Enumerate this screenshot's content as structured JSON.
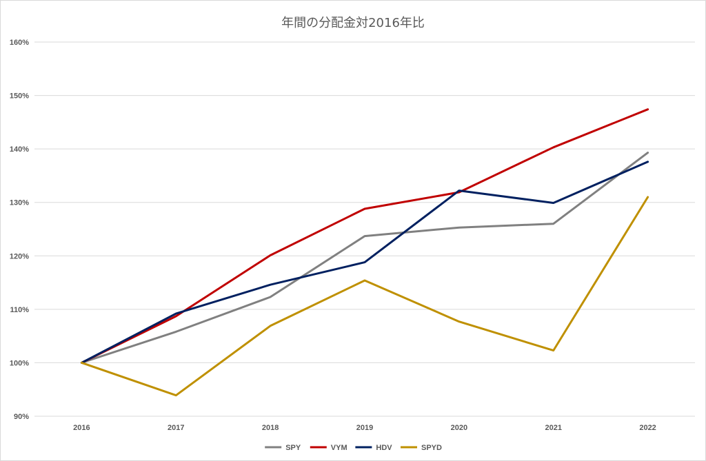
{
  "chart_data": {
    "type": "line",
    "title": "年間の分配金対2016年比",
    "xlabel": "",
    "ylabel": "",
    "categories": [
      "2016",
      "2017",
      "2018",
      "2019",
      "2020",
      "2021",
      "2022"
    ],
    "y_ticks": [
      "90%",
      "100%",
      "110%",
      "120%",
      "130%",
      "140%",
      "150%",
      "160%"
    ],
    "ylim": [
      90,
      160
    ],
    "grid": true,
    "legend_position": "bottom",
    "series": [
      {
        "name": "SPY",
        "color": "#808080",
        "values": [
          100,
          105.8,
          112.3,
          123.7,
          125.3,
          126.0,
          139.3
        ]
      },
      {
        "name": "VYM",
        "color": "#c00000",
        "values": [
          100,
          108.7,
          120.1,
          128.8,
          131.9,
          140.3,
          147.4
        ]
      },
      {
        "name": "HDV",
        "color": "#002060",
        "values": [
          100,
          109.2,
          114.6,
          118.8,
          132.2,
          129.9,
          137.6
        ]
      },
      {
        "name": "SPYD",
        "color": "#bf9000",
        "values": [
          100,
          93.9,
          106.9,
          115.4,
          107.7,
          102.3,
          131.0
        ]
      }
    ]
  }
}
